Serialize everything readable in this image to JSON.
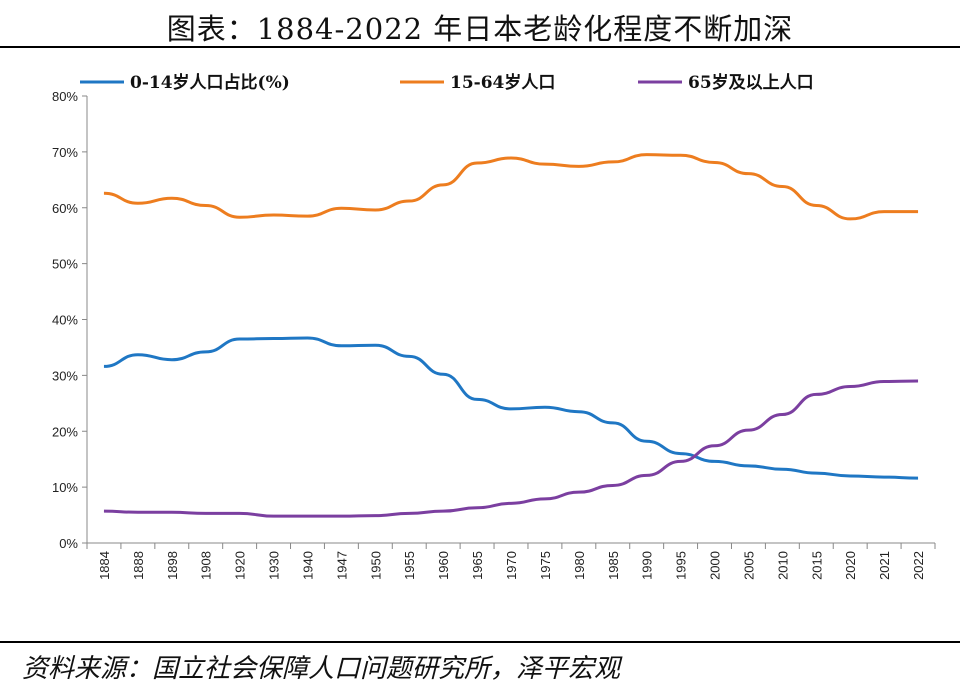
{
  "chart_data": {
    "type": "line",
    "title": "图表：1884-2022 年日本老龄化程度不断加深",
    "source": "资料来源：国立社会保障人口问题研究所，泽平宏观",
    "categories": [
      "1884",
      "1888",
      "1898",
      "1908",
      "1920",
      "1930",
      "1940",
      "1947",
      "1950",
      "1955",
      "1960",
      "1965",
      "1970",
      "1975",
      "1980",
      "1985",
      "1990",
      "1995",
      "2000",
      "2005",
      "2010",
      "2015",
      "2020",
      "2021",
      "2022"
    ],
    "ylim": [
      0,
      80
    ],
    "yticks": [
      "0%",
      "10%",
      "20%",
      "30%",
      "40%",
      "50%",
      "60%",
      "70%",
      "80%"
    ],
    "grid": false,
    "legend": "top",
    "series": [
      {
        "name": "0-14岁人口占比(%)",
        "color": "#1f77c4",
        "values": [
          31.6,
          33.7,
          32.8,
          34.2,
          36.5,
          36.6,
          36.7,
          35.3,
          35.4,
          33.4,
          30.2,
          25.7,
          24.0,
          24.3,
          23.5,
          21.5,
          18.2,
          16.0,
          14.6,
          13.8,
          13.2,
          12.5,
          12.0,
          11.8,
          11.6
        ]
      },
      {
        "name": "15-64岁人口",
        "color": "#ed7d1f",
        "values": [
          62.6,
          60.8,
          61.7,
          60.4,
          58.3,
          58.7,
          58.5,
          59.9,
          59.6,
          61.2,
          64.1,
          68.0,
          68.9,
          67.8,
          67.4,
          68.2,
          69.5,
          69.4,
          68.1,
          66.1,
          63.8,
          60.4,
          58.0,
          59.3,
          59.3
        ]
      },
      {
        "name": "65岁及以上人口",
        "color": "#7b3fa0",
        "values": [
          5.7,
          5.5,
          5.5,
          5.3,
          5.3,
          4.8,
          4.8,
          4.8,
          4.9,
          5.3,
          5.7,
          6.3,
          7.1,
          7.9,
          9.1,
          10.3,
          12.1,
          14.6,
          17.4,
          20.2,
          23.0,
          26.6,
          28.0,
          28.9,
          29.0
        ]
      }
    ]
  }
}
